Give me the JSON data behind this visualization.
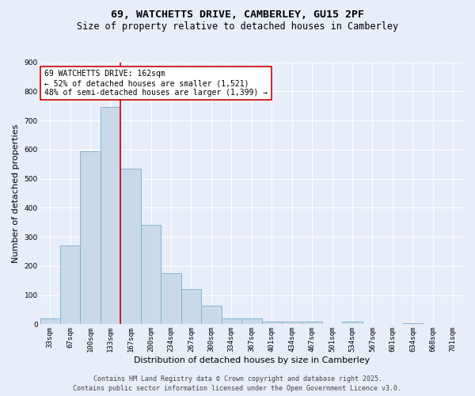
{
  "title_line1": "69, WATCHETTS DRIVE, CAMBERLEY, GU15 2PF",
  "title_line2": "Size of property relative to detached houses in Camberley",
  "xlabel": "Distribution of detached houses by size in Camberley",
  "ylabel": "Number of detached properties",
  "categories": [
    "33sqm",
    "67sqm",
    "100sqm",
    "133sqm",
    "167sqm",
    "200sqm",
    "234sqm",
    "267sqm",
    "300sqm",
    "334sqm",
    "367sqm",
    "401sqm",
    "434sqm",
    "467sqm",
    "501sqm",
    "534sqm",
    "567sqm",
    "601sqm",
    "634sqm",
    "668sqm",
    "701sqm"
  ],
  "values": [
    20,
    270,
    595,
    745,
    535,
    340,
    175,
    120,
    65,
    20,
    20,
    10,
    10,
    10,
    0,
    8,
    0,
    0,
    5,
    0,
    0
  ],
  "bar_color": "#c9d9ea",
  "bar_edge_color": "#7aaed0",
  "vline_color": "#cc0000",
  "ylim": [
    0,
    900
  ],
  "yticks": [
    0,
    100,
    200,
    300,
    400,
    500,
    600,
    700,
    800,
    900
  ],
  "annotation_text": "69 WATCHETTS DRIVE: 162sqm\n← 52% of detached houses are smaller (1,521)\n48% of semi-detached houses are larger (1,399) →",
  "annotation_box_color": "#ffffff",
  "annotation_box_edge": "#cc0000",
  "footer_line1": "Contains HM Land Registry data © Crown copyright and database right 2025.",
  "footer_line2": "Contains public sector information licensed under the Open Government Licence v3.0.",
  "background_color": "#e8eef8",
  "grid_color": "#ffffff",
  "title_fontsize": 9.5,
  "subtitle_fontsize": 8.5,
  "axis_label_fontsize": 8,
  "tick_fontsize": 6.5,
  "annotation_fontsize": 7,
  "footer_fontsize": 6
}
